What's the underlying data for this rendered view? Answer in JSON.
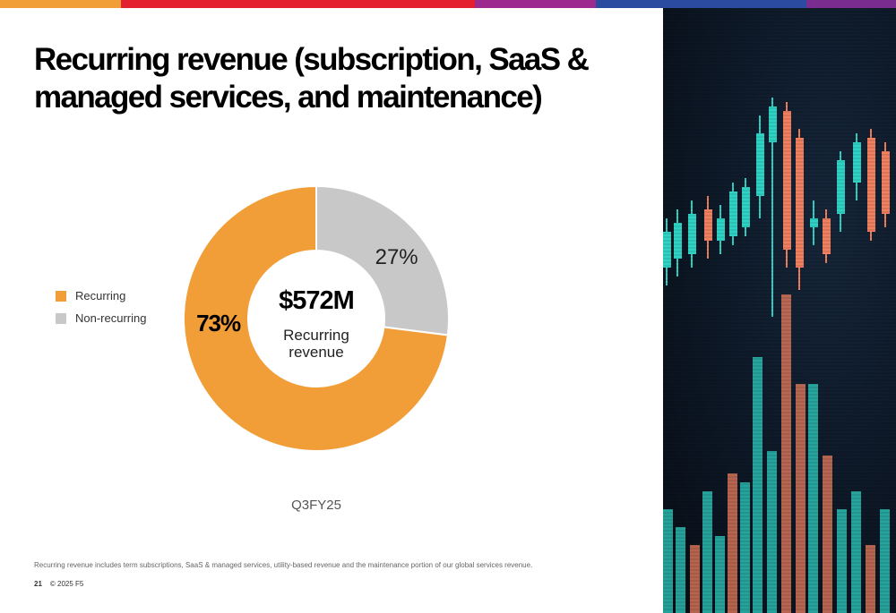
{
  "top_bar": {
    "colors": [
      "#F29E38",
      "#E4202F",
      "#E4202F",
      "#9C2A8F",
      "#2A4BA0",
      "#2A4BA0",
      "#7A2C8F"
    ]
  },
  "slide": {
    "title_line1": "Recurring revenue (subscription, SaaS &",
    "title_line2": "managed services, and maintenance)",
    "footnote": "Recurring revenue includes term subscriptions, SaaS & managed services, utility-based revenue and the maintenance portion of our global services revenue.",
    "page_number": "21",
    "copyright": "© 2025 F5"
  },
  "chart_data": {
    "type": "pie",
    "donut": true,
    "categories": [
      "Recurring",
      "Non-recurring"
    ],
    "values": [
      73,
      27
    ],
    "value_labels": [
      "73%",
      "27%"
    ],
    "colors": [
      "#F29E38",
      "#C8C8C8"
    ],
    "center_value": "$572M",
    "center_label_line1": "Recurring",
    "center_label_line2": "revenue",
    "period_label": "Q3FY25",
    "legend_position": "left"
  },
  "photo": {
    "description_icon": "stock-chart-photo"
  }
}
